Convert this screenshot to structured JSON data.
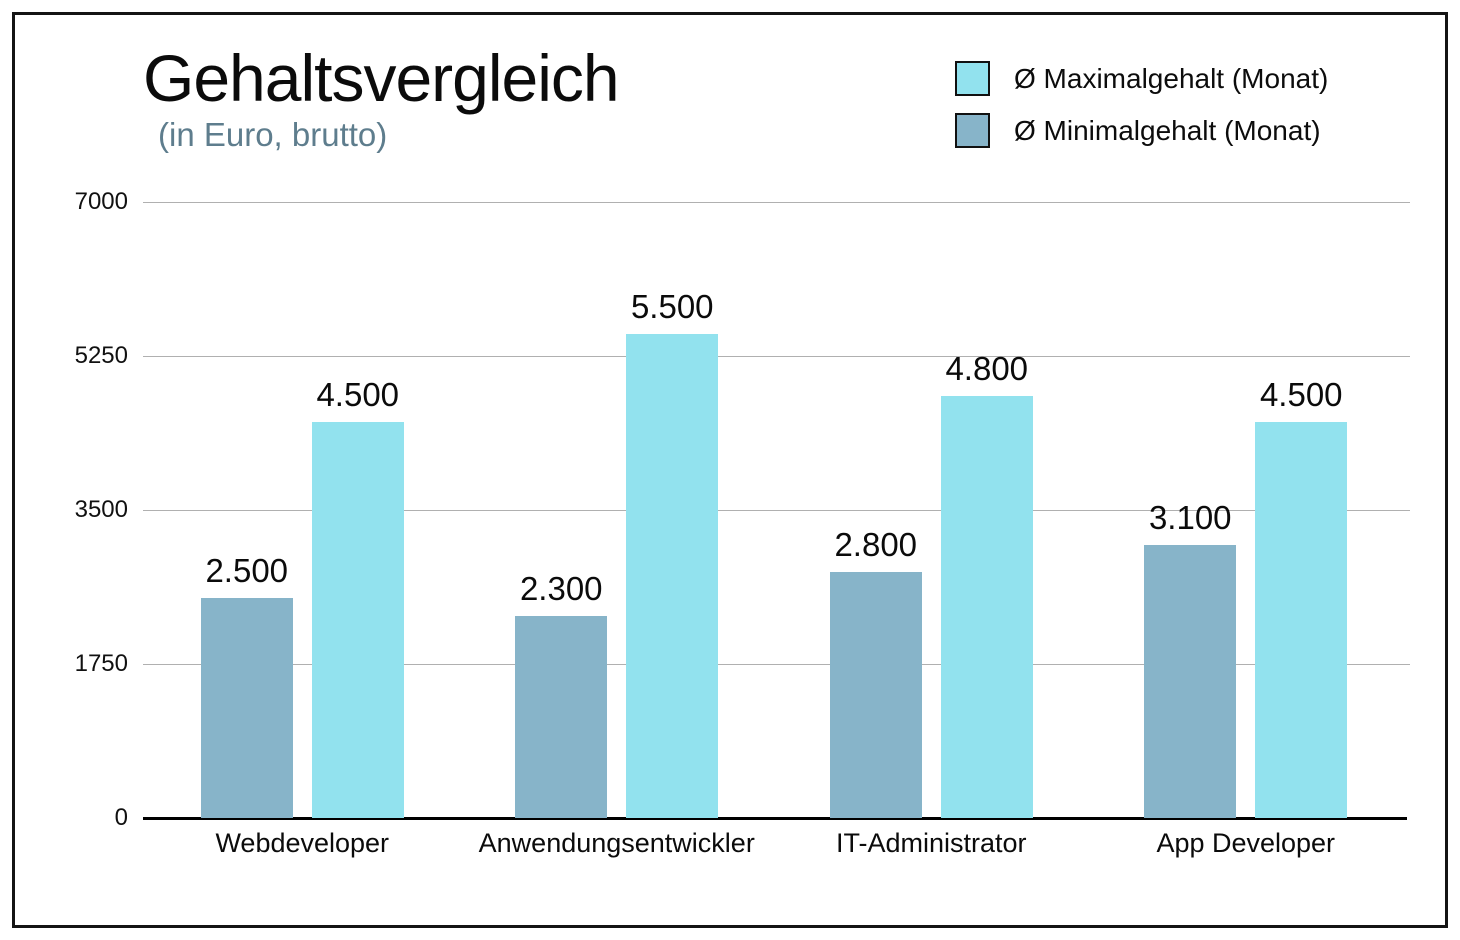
{
  "title": "Gehaltsvergleich",
  "subtitle": "(in Euro, brutto)",
  "legend": {
    "items": [
      {
        "label": "Ø Maximalgehalt (Monat)",
        "color": "#92e2ee"
      },
      {
        "label": "Ø Minimalgehalt (Monat)",
        "color": "#87b4c9"
      }
    ]
  },
  "chart_data": {
    "type": "bar",
    "title": "Gehaltsvergleich",
    "subtitle": "(in Euro, brutto)",
    "categories": [
      "Webdeveloper",
      "Anwendungsentwickler",
      "IT-Administrator",
      "App Developer"
    ],
    "series": [
      {
        "name": "Ø Minimalgehalt (Monat)",
        "color": "#87b4c9",
        "values": [
          2500,
          2300,
          2800,
          3100
        ],
        "value_labels": [
          "2.500",
          "2.300",
          "2.800",
          "3.100"
        ]
      },
      {
        "name": "Ø Maximalgehalt (Monat)",
        "color": "#92e2ee",
        "values": [
          4500,
          5500,
          4800,
          4500
        ],
        "value_labels": [
          "4.500",
          "5.500",
          "4.800",
          "4.500"
        ]
      }
    ],
    "xlabel": "",
    "ylabel": "",
    "ylim": [
      0,
      7000
    ],
    "yticks": [
      0,
      1750,
      3500,
      5250,
      7000
    ],
    "grid": true,
    "legend_position": "top-right",
    "currency": "Euro, brutto"
  }
}
